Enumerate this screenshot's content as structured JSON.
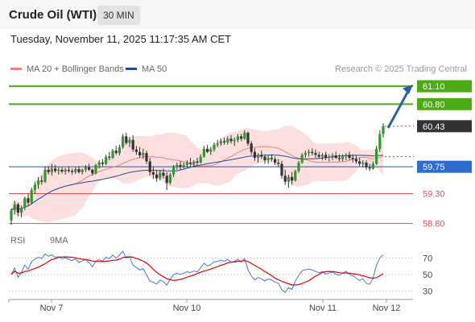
{
  "header": {
    "title": "Crude Oil (WTI)",
    "timeframe": "30 MIN"
  },
  "datetime": "Tuesday, November 11, 2025 11:17:35 AM CET",
  "legend": {
    "ma20": "MA 20 + Bollinger Bands",
    "ma50": "MA 50",
    "ma20_color": "#f08080",
    "ma50_color": "#1f4e9a"
  },
  "credit": "Research © 2025 Trading Central",
  "rsi_legend": {
    "rsi": "RSI",
    "ma": "9MA",
    "rsi_color": "#4a74d8",
    "ma_color": "#e00000"
  },
  "chart_data": {
    "type": "candlestick",
    "y_range": [
      58.7,
      61.25
    ],
    "levels": [
      {
        "value": "61.10",
        "role": "resistance",
        "color": "#4caa14"
      },
      {
        "value": "60.80",
        "role": "resistance",
        "color": "#4caa14"
      },
      {
        "value": "60.43",
        "role": "last price",
        "color": "#333333"
      },
      {
        "value": "59.75",
        "role": "pivot",
        "color": "#2d6bd0"
      },
      {
        "value": "59.30",
        "role": "support",
        "color": "#e05050"
      },
      {
        "value": "58.80",
        "role": "support",
        "color": "#e05050"
      }
    ],
    "x_labels": [
      "Nov 7",
      "Nov 10",
      "Nov 11",
      "Nov 12"
    ],
    "candles": [
      [
        58.85,
        59.05,
        58.78,
        59.02
      ],
      [
        59.02,
        59.18,
        58.95,
        59.12
      ],
      [
        59.12,
        59.15,
        58.92,
        58.98
      ],
      [
        58.98,
        59.1,
        58.9,
        59.06
      ],
      [
        59.06,
        59.25,
        59.02,
        59.22
      ],
      [
        59.22,
        59.3,
        59.1,
        59.15
      ],
      [
        59.15,
        59.4,
        59.12,
        59.36
      ],
      [
        59.36,
        59.5,
        59.3,
        59.45
      ],
      [
        59.45,
        59.58,
        59.38,
        59.52
      ],
      [
        59.52,
        59.6,
        59.45,
        59.5
      ],
      [
        59.5,
        59.75,
        59.48,
        59.7
      ],
      [
        59.7,
        59.76,
        59.62,
        59.66
      ],
      [
        59.66,
        59.8,
        59.6,
        59.72
      ],
      [
        59.72,
        59.78,
        59.65,
        59.68
      ],
      [
        59.68,
        59.74,
        59.62,
        59.7
      ],
      [
        59.7,
        59.74,
        59.64,
        59.67
      ],
      [
        59.67,
        59.73,
        59.62,
        59.7
      ],
      [
        59.7,
        59.75,
        59.65,
        59.68
      ],
      [
        59.68,
        59.72,
        59.62,
        59.66
      ],
      [
        59.66,
        59.74,
        59.63,
        59.71
      ],
      [
        59.71,
        59.76,
        59.64,
        59.66
      ],
      [
        59.66,
        59.72,
        59.62,
        59.7
      ],
      [
        59.7,
        59.78,
        59.66,
        59.74
      ],
      [
        59.74,
        59.8,
        59.68,
        59.7
      ],
      [
        59.7,
        59.72,
        59.6,
        59.64
      ],
      [
        59.64,
        59.8,
        59.62,
        59.78
      ],
      [
        59.78,
        59.86,
        59.72,
        59.82
      ],
      [
        59.82,
        59.88,
        59.76,
        59.8
      ],
      [
        59.8,
        59.95,
        59.78,
        59.92
      ],
      [
        59.92,
        60.0,
        59.86,
        59.9
      ],
      [
        59.9,
        60.05,
        59.88,
        60.02
      ],
      [
        60.02,
        60.1,
        59.95,
        59.98
      ],
      [
        59.98,
        60.12,
        59.94,
        60.08
      ],
      [
        60.08,
        60.3,
        60.05,
        60.26
      ],
      [
        60.26,
        60.32,
        60.12,
        60.15
      ],
      [
        60.15,
        60.25,
        60.08,
        60.2
      ],
      [
        60.2,
        60.28,
        60.0,
        60.04
      ],
      [
        60.04,
        60.1,
        59.95,
        60.0
      ],
      [
        60.0,
        60.08,
        59.9,
        59.94
      ],
      [
        59.94,
        60.05,
        59.88,
        59.98
      ],
      [
        59.98,
        60.02,
        59.8,
        59.84
      ],
      [
        59.84,
        59.9,
        59.6,
        59.66
      ],
      [
        59.66,
        59.75,
        59.55,
        59.62
      ],
      [
        59.62,
        59.7,
        59.5,
        59.56
      ],
      [
        59.56,
        59.7,
        59.52,
        59.65
      ],
      [
        59.65,
        59.72,
        59.55,
        59.6
      ],
      [
        59.6,
        59.66,
        59.36,
        59.48
      ],
      [
        59.48,
        59.65,
        59.45,
        59.62
      ],
      [
        59.62,
        59.78,
        59.58,
        59.74
      ],
      [
        59.74,
        59.82,
        59.7,
        59.78
      ],
      [
        59.78,
        59.84,
        59.7,
        59.75
      ],
      [
        59.75,
        59.82,
        59.72,
        59.78
      ],
      [
        59.78,
        59.86,
        59.74,
        59.82
      ],
      [
        59.82,
        59.9,
        59.76,
        59.8
      ],
      [
        59.8,
        59.86,
        59.74,
        59.84
      ],
      [
        59.84,
        59.9,
        59.78,
        59.82
      ],
      [
        59.82,
        59.96,
        59.8,
        59.92
      ],
      [
        59.92,
        60.1,
        59.9,
        60.05
      ],
      [
        60.05,
        60.12,
        59.98,
        60.0
      ],
      [
        60.0,
        60.08,
        59.95,
        60.04
      ],
      [
        60.04,
        60.16,
        60.0,
        60.12
      ],
      [
        60.12,
        60.2,
        60.08,
        60.14
      ],
      [
        60.14,
        60.22,
        60.1,
        60.18
      ],
      [
        60.18,
        60.24,
        60.12,
        60.16
      ],
      [
        60.16,
        60.26,
        60.12,
        60.22
      ],
      [
        60.22,
        60.28,
        60.14,
        60.18
      ],
      [
        60.18,
        60.24,
        60.1,
        60.2
      ],
      [
        60.2,
        60.3,
        60.16,
        60.26
      ],
      [
        60.26,
        60.3,
        60.18,
        60.22
      ],
      [
        60.22,
        60.36,
        60.2,
        60.32
      ],
      [
        60.32,
        60.34,
        60.1,
        60.14
      ],
      [
        60.14,
        60.18,
        59.95,
        60.0
      ],
      [
        60.0,
        60.06,
        59.85,
        59.9
      ],
      [
        59.9,
        59.98,
        59.82,
        59.95
      ],
      [
        59.95,
        60.02,
        59.88,
        59.92
      ],
      [
        59.92,
        59.96,
        59.8,
        59.86
      ],
      [
        59.86,
        59.94,
        59.8,
        59.9
      ],
      [
        59.9,
        59.96,
        59.84,
        59.88
      ],
      [
        59.88,
        59.92,
        59.78,
        59.82
      ],
      [
        59.82,
        59.88,
        59.75,
        59.8
      ],
      [
        59.8,
        59.85,
        59.55,
        59.6
      ],
      [
        59.6,
        59.7,
        59.45,
        59.5
      ],
      [
        59.5,
        59.62,
        59.4,
        59.58
      ],
      [
        59.58,
        59.66,
        59.45,
        59.52
      ],
      [
        59.52,
        59.7,
        59.5,
        59.68
      ],
      [
        59.68,
        59.85,
        59.65,
        59.82
      ],
      [
        59.82,
        59.98,
        59.8,
        59.95
      ],
      [
        59.95,
        60.02,
        59.9,
        59.98
      ],
      [
        59.98,
        60.04,
        59.92,
        60.0
      ],
      [
        60.0,
        60.06,
        59.94,
        59.98
      ],
      [
        59.98,
        60.04,
        59.9,
        59.95
      ],
      [
        59.95,
        60.0,
        59.88,
        59.92
      ],
      [
        59.92,
        59.98,
        59.86,
        59.95
      ],
      [
        59.95,
        60.0,
        59.86,
        59.9
      ],
      [
        59.9,
        59.96,
        59.84,
        59.92
      ],
      [
        59.92,
        59.98,
        59.86,
        59.94
      ],
      [
        59.94,
        60.0,
        59.88,
        59.9
      ],
      [
        59.9,
        59.96,
        59.84,
        59.88
      ],
      [
        59.88,
        59.96,
        59.84,
        59.92
      ],
      [
        59.92,
        59.98,
        59.86,
        59.95
      ],
      [
        59.95,
        60.0,
        59.86,
        59.9
      ],
      [
        59.9,
        59.96,
        59.82,
        59.88
      ],
      [
        59.88,
        59.94,
        59.8,
        59.84
      ],
      [
        59.84,
        59.9,
        59.76,
        59.8
      ],
      [
        59.8,
        59.86,
        59.74,
        59.82
      ],
      [
        59.82,
        59.86,
        59.7,
        59.74
      ],
      [
        59.74,
        59.8,
        59.68,
        59.72
      ],
      [
        59.72,
        59.84,
        59.7,
        59.8
      ],
      [
        59.8,
        60.1,
        59.78,
        60.05
      ],
      [
        60.05,
        60.36,
        60.0,
        60.3
      ],
      [
        60.3,
        60.48,
        60.24,
        60.43
      ]
    ]
  },
  "rsi_data": {
    "y_ticks": [
      "70",
      "50",
      "30"
    ]
  }
}
